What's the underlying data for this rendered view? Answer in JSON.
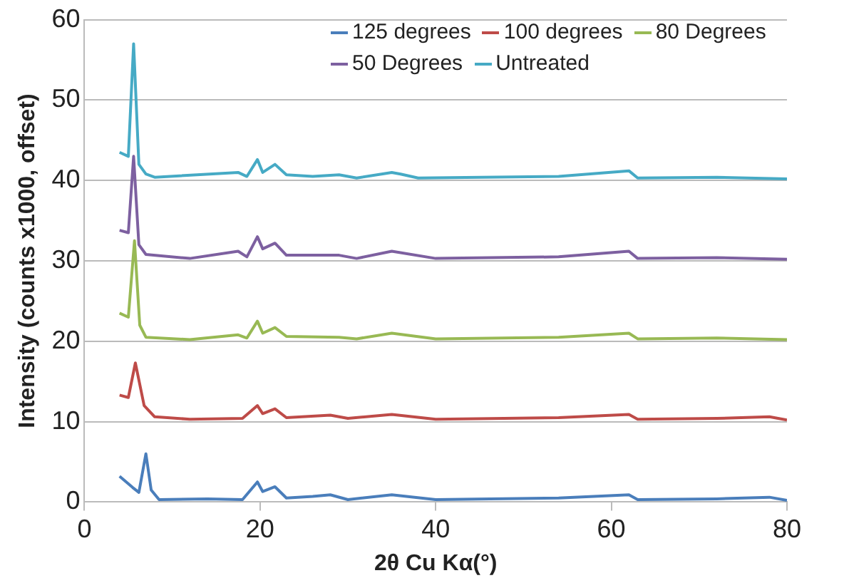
{
  "chart_data": {
    "type": "line",
    "xlabel": "2θ Cu Kα(°)",
    "ylabel": "Intensity (counts x1000, offset)",
    "xlim": [
      0,
      80
    ],
    "xticks": [
      0,
      20,
      40,
      60,
      80
    ],
    "ylim": [
      0,
      60
    ],
    "yticks": [
      0,
      10,
      20,
      30,
      40,
      50,
      60
    ],
    "grid": "y",
    "legend": "top right",
    "marker": "none",
    "line_style": "solid",
    "series": [
      {
        "name": "125 degrees",
        "color": "#4a7ebb",
        "x": [
          4,
          5.5,
          6.2,
          7,
          7.6,
          8.5,
          14,
          18,
          19.7,
          20.3,
          21.7,
          23,
          26,
          28,
          30,
          35,
          40,
          54,
          62,
          63,
          72,
          78,
          80
        ],
        "values": [
          3.2,
          1.8,
          1.2,
          6,
          1.5,
          0.3,
          0.4,
          0.3,
          2.5,
          1.3,
          1.9,
          0.5,
          0.7,
          0.9,
          0.3,
          0.9,
          0.3,
          0.5,
          0.9,
          0.3,
          0.4,
          0.6,
          0.2
        ]
      },
      {
        "name": "100 degrees",
        "color": "#be4b48",
        "x": [
          4,
          5,
          5.8,
          6.8,
          8,
          12,
          18,
          19.7,
          20.3,
          21.7,
          23,
          28,
          30,
          35,
          40,
          54,
          62,
          63,
          72,
          78,
          80
        ],
        "values": [
          13.3,
          13,
          17.3,
          12,
          10.6,
          10.3,
          10.4,
          12,
          11,
          11.6,
          10.5,
          10.8,
          10.4,
          10.9,
          10.3,
          10.5,
          10.9,
          10.3,
          10.4,
          10.6,
          10.2
        ]
      },
      {
        "name": "80 Degrees",
        "color": "#98b954",
        "x": [
          4,
          5,
          5.7,
          6.3,
          7,
          12,
          17.5,
          18.5,
          19.7,
          20.3,
          21.7,
          23,
          29,
          31,
          35,
          40,
          54,
          62,
          63,
          72,
          80
        ],
        "values": [
          23.5,
          23,
          32.5,
          22,
          20.5,
          20.2,
          20.8,
          20.4,
          22.5,
          21,
          21.7,
          20.6,
          20.5,
          20.3,
          21,
          20.3,
          20.5,
          21,
          20.3,
          20.4,
          20.2
        ]
      },
      {
        "name": "50 Degrees",
        "color": "#7d60a0",
        "x": [
          4,
          5,
          5.6,
          6.2,
          7,
          12,
          17.5,
          18.5,
          19.7,
          20.3,
          21.7,
          23,
          29,
          31,
          35,
          40,
          54,
          62,
          63,
          72,
          80
        ],
        "values": [
          33.8,
          33.5,
          43,
          32,
          30.8,
          30.3,
          31.2,
          30.5,
          33,
          31.5,
          32.2,
          30.7,
          30.7,
          30.3,
          31.2,
          30.3,
          30.5,
          31.2,
          30.3,
          30.4,
          30.2
        ]
      },
      {
        "name": "Untreated",
        "color": "#46aac5",
        "x": [
          4,
          5,
          5.6,
          6.2,
          7,
          8,
          17.5,
          18.5,
          19.7,
          20.3,
          21.7,
          23,
          26,
          29,
          31,
          35,
          36,
          38,
          54,
          62,
          63,
          72,
          80
        ],
        "values": [
          43.5,
          43,
          57,
          42,
          40.8,
          40.4,
          41,
          40.5,
          42.6,
          41,
          42,
          40.7,
          40.5,
          40.7,
          40.3,
          41,
          40.8,
          40.3,
          40.5,
          41.2,
          40.3,
          40.4,
          40.2
        ]
      }
    ]
  }
}
